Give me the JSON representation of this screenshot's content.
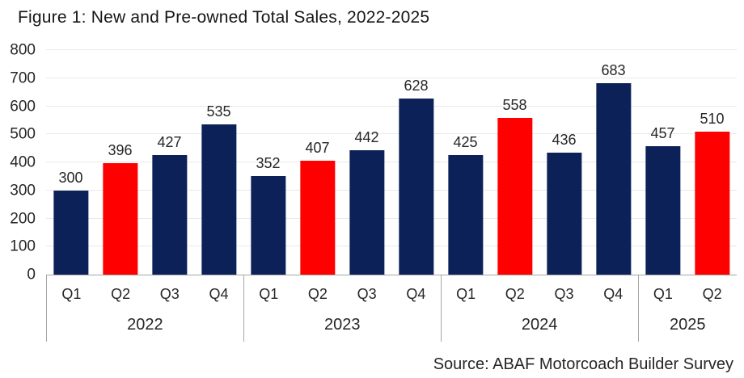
{
  "title": "Figure 1: New and Pre-owned Total Sales, 2022-2025",
  "source": "Source: ABAF Motorcoach Builder Survey",
  "chart_data": {
    "type": "bar",
    "title": "Figure 1: New and Pre-owned Total Sales, 2022-2025",
    "xlabel": "",
    "ylabel": "",
    "ylim": [
      0,
      800
    ],
    "yticks": [
      0,
      100,
      200,
      300,
      400,
      500,
      600,
      700,
      800
    ],
    "grid": true,
    "legend": "none",
    "colors": {
      "navy": "#0b2158",
      "red": "#fe0000",
      "grid": "#e9e9e9",
      "axis": "#a6a6a6"
    },
    "groups": [
      {
        "year": "2022",
        "quarters": [
          "Q1",
          "Q2",
          "Q3",
          "Q4"
        ],
        "values": [
          300,
          396,
          427,
          535
        ],
        "bar_colors": [
          "navy",
          "red",
          "navy",
          "navy"
        ]
      },
      {
        "year": "2023",
        "quarters": [
          "Q1",
          "Q2",
          "Q3",
          "Q4"
        ],
        "values": [
          352,
          407,
          442,
          628
        ],
        "bar_colors": [
          "navy",
          "red",
          "navy",
          "navy"
        ]
      },
      {
        "year": "2024",
        "quarters": [
          "Q1",
          "Q2",
          "Q3",
          "Q4"
        ],
        "values": [
          425,
          558,
          436,
          683
        ],
        "bar_colors": [
          "navy",
          "red",
          "navy",
          "navy"
        ]
      },
      {
        "year": "2025",
        "quarters": [
          "Q1",
          "Q2"
        ],
        "values": [
          457,
          510
        ],
        "bar_colors": [
          "navy",
          "red"
        ]
      }
    ]
  }
}
